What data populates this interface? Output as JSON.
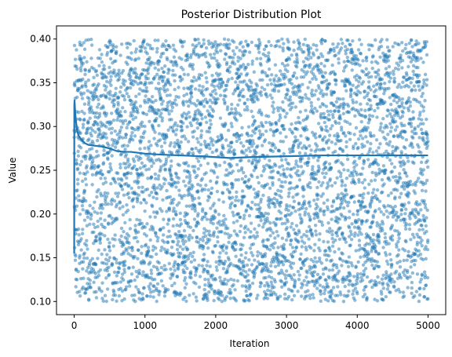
{
  "chart_data": {
    "type": "scatter",
    "title": "Posterior Distribution Plot",
    "xlabel": "Iteration",
    "ylabel": "Value",
    "xlim": [
      -250,
      5250
    ],
    "ylim": [
      0.085,
      0.415
    ],
    "xticks": [
      0,
      1000,
      2000,
      3000,
      4000,
      5000
    ],
    "yticks": [
      0.1,
      0.15,
      0.2,
      0.25,
      0.3,
      0.35,
      0.4
    ],
    "xtick_labels": [
      "0",
      "1000",
      "2000",
      "3000",
      "4000",
      "5000"
    ],
    "ytick_labels": [
      "0.10",
      "0.15",
      "0.20",
      "0.25",
      "0.30",
      "0.35",
      "0.40"
    ],
    "grid": false,
    "series": [
      {
        "kind": "scatter",
        "description": "posterior samples, uniformly spread over [0.10, 0.40]",
        "n_points": 5000,
        "x_range": [
          0,
          5000
        ],
        "y_range": [
          0.1,
          0.4
        ],
        "color": "#1f77b4",
        "alpha": 0.5
      },
      {
        "kind": "line",
        "description": "running mean of samples",
        "color": "#1f77b4",
        "x": [
          0,
          2,
          5,
          10,
          20,
          40,
          60,
          100,
          150,
          200,
          300,
          400,
          500,
          600,
          700,
          800,
          1000,
          1200,
          1500,
          1800,
          2000,
          2200,
          2500,
          3000,
          3500,
          4000,
          4500,
          5000
        ],
        "y": [
          0.155,
          0.325,
          0.33,
          0.322,
          0.31,
          0.296,
          0.29,
          0.285,
          0.281,
          0.279,
          0.278,
          0.277,
          0.275,
          0.272,
          0.271,
          0.271,
          0.269,
          0.268,
          0.267,
          0.266,
          0.265,
          0.264,
          0.265,
          0.266,
          0.267,
          0.267,
          0.267,
          0.267
        ]
      }
    ]
  },
  "colors": {
    "series": "#1f77b4",
    "axes": "#000000",
    "background": "#ffffff"
  }
}
